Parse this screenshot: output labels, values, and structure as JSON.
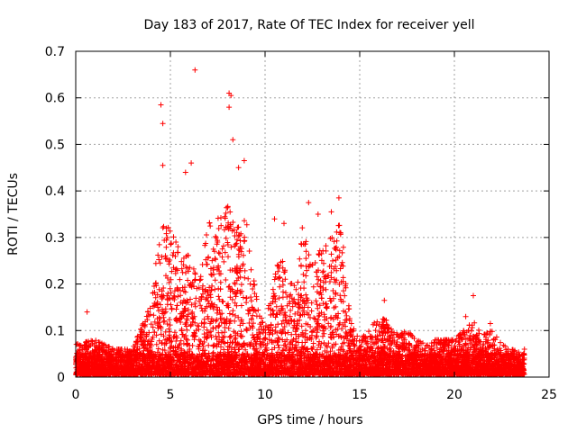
{
  "chart_data": {
    "type": "scatter",
    "title": "Day 183 of 2017, Rate Of TEC Index for receiver yell",
    "xlabel": "GPS time / hours",
    "ylabel": "ROTI / TECUs",
    "xlim": [
      0,
      25
    ],
    "ylim": [
      0,
      0.7
    ],
    "xticks": [
      0,
      5,
      10,
      15,
      20,
      25
    ],
    "xtick_labels": [
      "0",
      "5",
      "10",
      "15",
      "20",
      "25"
    ],
    "yticks": [
      0,
      0.1,
      0.2,
      0.3,
      0.4,
      0.5,
      0.6,
      0.7
    ],
    "ytick_labels": [
      "0",
      "0.1",
      "0.2",
      "0.3",
      "0.4",
      "0.5",
      "0.6",
      "0.7"
    ],
    "grid": true,
    "marker": "+",
    "color": "#ff0000",
    "notable_points": [
      {
        "x": 0.6,
        "y": 0.14
      },
      {
        "x": 4.5,
        "y": 0.585
      },
      {
        "x": 4.6,
        "y": 0.545
      },
      {
        "x": 4.6,
        "y": 0.455
      },
      {
        "x": 5.8,
        "y": 0.44
      },
      {
        "x": 6.1,
        "y": 0.46
      },
      {
        "x": 6.3,
        "y": 0.66
      },
      {
        "x": 8.1,
        "y": 0.61
      },
      {
        "x": 8.2,
        "y": 0.605
      },
      {
        "x": 8.1,
        "y": 0.58
      },
      {
        "x": 8.3,
        "y": 0.51
      },
      {
        "x": 8.6,
        "y": 0.45
      },
      {
        "x": 8.9,
        "y": 0.465
      },
      {
        "x": 10.5,
        "y": 0.34
      },
      {
        "x": 11.0,
        "y": 0.33
      },
      {
        "x": 12.3,
        "y": 0.375
      },
      {
        "x": 12.8,
        "y": 0.35
      },
      {
        "x": 13.5,
        "y": 0.355
      },
      {
        "x": 13.9,
        "y": 0.385
      },
      {
        "x": 16.3,
        "y": 0.165
      },
      {
        "x": 20.6,
        "y": 0.13
      },
      {
        "x": 21.0,
        "y": 0.175
      },
      {
        "x": 21.9,
        "y": 0.115
      },
      {
        "x": 23.7,
        "y": 0.06
      }
    ],
    "density_envelope": {
      "description": "Approximate upper envelope of the dense cloud of points (hours, TECU)",
      "x": [
        0,
        1,
        2,
        3,
        4,
        4.5,
        5,
        5.5,
        6,
        6.5,
        7,
        7.5,
        8,
        8.5,
        9,
        9.5,
        10,
        10.5,
        11,
        11.5,
        12,
        12.5,
        13,
        13.5,
        14,
        14.5,
        15,
        15.5,
        16,
        16.5,
        17,
        17.5,
        18,
        18.5,
        19,
        19.5,
        20,
        20.5,
        21,
        21.5,
        22,
        22.5,
        23,
        23.7
      ],
      "y": [
        0.07,
        0.08,
        0.06,
        0.06,
        0.16,
        0.34,
        0.32,
        0.27,
        0.26,
        0.2,
        0.33,
        0.34,
        0.37,
        0.32,
        0.34,
        0.18,
        0.1,
        0.24,
        0.25,
        0.19,
        0.33,
        0.24,
        0.28,
        0.3,
        0.34,
        0.12,
        0.08,
        0.1,
        0.13,
        0.12,
        0.09,
        0.1,
        0.08,
        0.07,
        0.08,
        0.08,
        0.08,
        0.1,
        0.12,
        0.09,
        0.1,
        0.07,
        0.06,
        0.05
      ]
    }
  }
}
